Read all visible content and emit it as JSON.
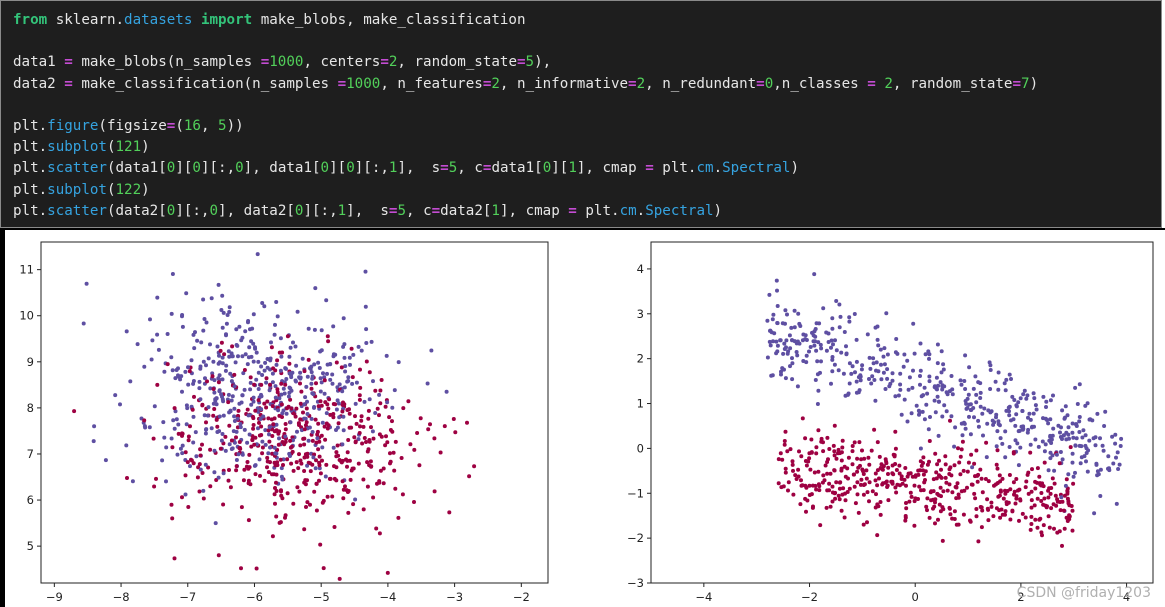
{
  "code_cell": {
    "lines": [
      [
        {
          "t": "from",
          "c": "kw"
        },
        {
          "t": " sklearn."
        },
        {
          "t": "datasets",
          "c": "mod"
        },
        {
          "t": " "
        },
        {
          "t": "import",
          "c": "kw"
        },
        {
          "t": " make_blobs, make_classification"
        }
      ],
      [],
      [
        {
          "t": "data1 "
        },
        {
          "t": "=",
          "c": "op"
        },
        {
          "t": " make_blobs(n_samples "
        },
        {
          "t": "=",
          "c": "op"
        },
        {
          "t": "1000",
          "c": "num"
        },
        {
          "t": ", centers"
        },
        {
          "t": "=",
          "c": "op"
        },
        {
          "t": "2",
          "c": "num"
        },
        {
          "t": ", random_state"
        },
        {
          "t": "=",
          "c": "op"
        },
        {
          "t": "5",
          "c": "num"
        },
        {
          "t": "),"
        }
      ],
      [
        {
          "t": "data2 "
        },
        {
          "t": "=",
          "c": "op"
        },
        {
          "t": " make_classification(n_samples "
        },
        {
          "t": "=",
          "c": "op"
        },
        {
          "t": "1000",
          "c": "num"
        },
        {
          "t": ", n_features"
        },
        {
          "t": "=",
          "c": "op"
        },
        {
          "t": "2",
          "c": "num"
        },
        {
          "t": ", n_informative"
        },
        {
          "t": "=",
          "c": "op"
        },
        {
          "t": "2",
          "c": "num"
        },
        {
          "t": ", n_redundant"
        },
        {
          "t": "=",
          "c": "op"
        },
        {
          "t": "0",
          "c": "num"
        },
        {
          "t": ",n_classes "
        },
        {
          "t": "=",
          "c": "op"
        },
        {
          "t": " "
        },
        {
          "t": "2",
          "c": "num"
        },
        {
          "t": ", random_state"
        },
        {
          "t": "=",
          "c": "op"
        },
        {
          "t": "7",
          "c": "num"
        },
        {
          "t": ")"
        }
      ],
      [],
      [
        {
          "t": "plt."
        },
        {
          "t": "figure",
          "c": "mod"
        },
        {
          "t": "(figsize"
        },
        {
          "t": "=",
          "c": "op"
        },
        {
          "t": "("
        },
        {
          "t": "16",
          "c": "num"
        },
        {
          "t": ", "
        },
        {
          "t": "5",
          "c": "num"
        },
        {
          "t": "))"
        }
      ],
      [
        {
          "t": "plt."
        },
        {
          "t": "subplot",
          "c": "mod"
        },
        {
          "t": "("
        },
        {
          "t": "121",
          "c": "num"
        },
        {
          "t": ")"
        }
      ],
      [
        {
          "t": "plt."
        },
        {
          "t": "scatter",
          "c": "mod"
        },
        {
          "t": "(data1["
        },
        {
          "t": "0",
          "c": "num"
        },
        {
          "t": "]["
        },
        {
          "t": "0",
          "c": "num"
        },
        {
          "t": "][:,"
        },
        {
          "t": "0",
          "c": "num"
        },
        {
          "t": "], data1["
        },
        {
          "t": "0",
          "c": "num"
        },
        {
          "t": "]["
        },
        {
          "t": "0",
          "c": "num"
        },
        {
          "t": "][:,"
        },
        {
          "t": "1",
          "c": "num"
        },
        {
          "t": "],  s"
        },
        {
          "t": "=",
          "c": "op"
        },
        {
          "t": "5",
          "c": "num"
        },
        {
          "t": ", c"
        },
        {
          "t": "=",
          "c": "op"
        },
        {
          "t": "data1["
        },
        {
          "t": "0",
          "c": "num"
        },
        {
          "t": "]["
        },
        {
          "t": "1",
          "c": "num"
        },
        {
          "t": "], cmap "
        },
        {
          "t": "=",
          "c": "op"
        },
        {
          "t": " plt."
        },
        {
          "t": "cm",
          "c": "mod"
        },
        {
          "t": "."
        },
        {
          "t": "Spectral",
          "c": "mod"
        },
        {
          "t": ")"
        }
      ],
      [
        {
          "t": "plt."
        },
        {
          "t": "subplot",
          "c": "mod"
        },
        {
          "t": "("
        },
        {
          "t": "122",
          "c": "num"
        },
        {
          "t": ")"
        }
      ],
      [
        {
          "t": "plt."
        },
        {
          "t": "scatter",
          "c": "mod"
        },
        {
          "t": "(data2["
        },
        {
          "t": "0",
          "c": "num"
        },
        {
          "t": "][:,"
        },
        {
          "t": "0",
          "c": "num"
        },
        {
          "t": "], data2["
        },
        {
          "t": "0",
          "c": "num"
        },
        {
          "t": "][:,"
        },
        {
          "t": "1",
          "c": "num"
        },
        {
          "t": "],  s"
        },
        {
          "t": "=",
          "c": "op"
        },
        {
          "t": "5",
          "c": "num"
        },
        {
          "t": ", c"
        },
        {
          "t": "=",
          "c": "op"
        },
        {
          "t": "data2["
        },
        {
          "t": "1",
          "c": "num"
        },
        {
          "t": "], cmap "
        },
        {
          "t": "=",
          "c": "op"
        },
        {
          "t": " plt."
        },
        {
          "t": "cm",
          "c": "mod"
        },
        {
          "t": "."
        },
        {
          "t": "Spectral",
          "c": "mod"
        },
        {
          "t": ")"
        }
      ]
    ]
  },
  "colors": {
    "class0": "#9e0142",
    "class1": "#5e4fa2"
  },
  "watermark": "CSDN @friday1203",
  "chart_data": [
    {
      "type": "scatter",
      "title": "",
      "xlabel": "",
      "ylabel": "",
      "xlim": [
        -9.2,
        -1.6
      ],
      "ylim": [
        4.2,
        11.6
      ],
      "xticks": [
        -9,
        -8,
        -7,
        -6,
        -5,
        -4,
        -3,
        -2
      ],
      "yticks": [
        5,
        6,
        7,
        8,
        9,
        10,
        11
      ],
      "grid": false,
      "series": [
        {
          "color": "#9e0142",
          "center": [
            -5.4,
            7.3
          ],
          "spread": [
            0.95,
            0.9
          ],
          "count": 500
        },
        {
          "color": "#5e4fa2",
          "center": [
            -6.0,
            8.4
          ],
          "spread": [
            0.9,
            1.0
          ],
          "count": 500
        }
      ]
    },
    {
      "type": "scatter",
      "title": "",
      "xlabel": "",
      "ylabel": "",
      "xlim": [
        -5.0,
        4.5
      ],
      "ylim": [
        -3.0,
        4.6
      ],
      "xticks": [
        -4,
        -2,
        0,
        2,
        4
      ],
      "yticks": [
        -3,
        -2,
        -1,
        0,
        1,
        2,
        3,
        4
      ],
      "grid": false,
      "series": [
        {
          "color": "#9e0142",
          "shape": "band",
          "x_range": [
            -2.6,
            3.0
          ],
          "y_start": -0.4,
          "y_slope": -0.15,
          "spread": 0.45,
          "count": 500
        },
        {
          "color": "#5e4fa2",
          "shape": "band",
          "x_range": [
            -2.8,
            3.9
          ],
          "y_start": 2.6,
          "y_slope": -0.42,
          "spread": 0.5,
          "count": 500
        }
      ]
    }
  ]
}
